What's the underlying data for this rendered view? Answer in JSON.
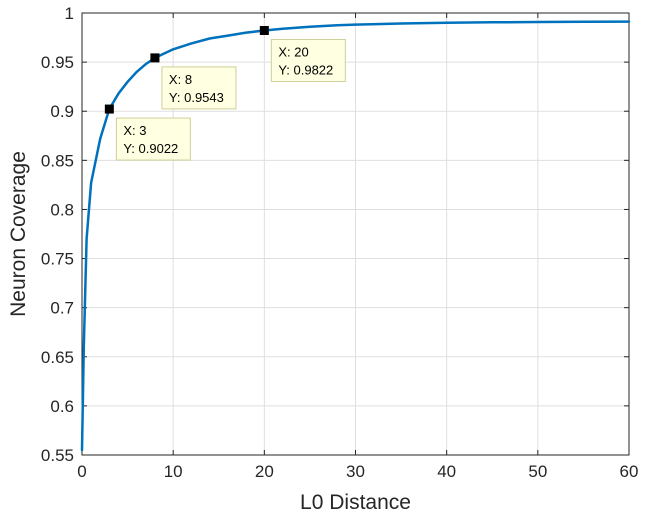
{
  "chart_data": {
    "type": "line",
    "xlabel": "L0 Distance",
    "ylabel": "Neuron Coverage",
    "xlim": [
      0,
      60
    ],
    "ylim": [
      0.55,
      1
    ],
    "grid": true,
    "xticks": [
      "0",
      "10",
      "20",
      "30",
      "40",
      "50",
      "60"
    ],
    "yticks": [
      "0.55",
      "0.6",
      "0.65",
      "0.7",
      "0.75",
      "0.8",
      "0.85",
      "0.9",
      "0.95",
      "1"
    ],
    "series": [
      {
        "color": "#0072bd",
        "x": [
          0,
          0.2,
          0.5,
          1,
          2,
          3,
          4,
          5,
          6,
          7,
          8,
          10,
          12,
          14,
          16,
          18,
          20,
          22,
          25,
          28,
          30,
          35,
          40,
          45,
          50,
          55,
          60
        ],
        "y": [
          0.555,
          0.66,
          0.77,
          0.827,
          0.872,
          0.9022,
          0.918,
          0.93,
          0.94,
          0.948,
          0.9543,
          0.963,
          0.969,
          0.974,
          0.977,
          0.98,
          0.9822,
          0.984,
          0.986,
          0.9875,
          0.9882,
          0.9893,
          0.99,
          0.9905,
          0.9908,
          0.991,
          0.9912
        ]
      }
    ],
    "datatips": [
      {
        "x": 3,
        "y": 0.9022,
        "line1": "X: 3",
        "line2": "Y: 0.9022"
      },
      {
        "x": 8,
        "y": 0.9543,
        "line1": "X: 8",
        "line2": "Y: 0.9543"
      },
      {
        "x": 20,
        "y": 0.9822,
        "line1": "X: 20",
        "line2": "Y: 0.9822"
      }
    ]
  }
}
